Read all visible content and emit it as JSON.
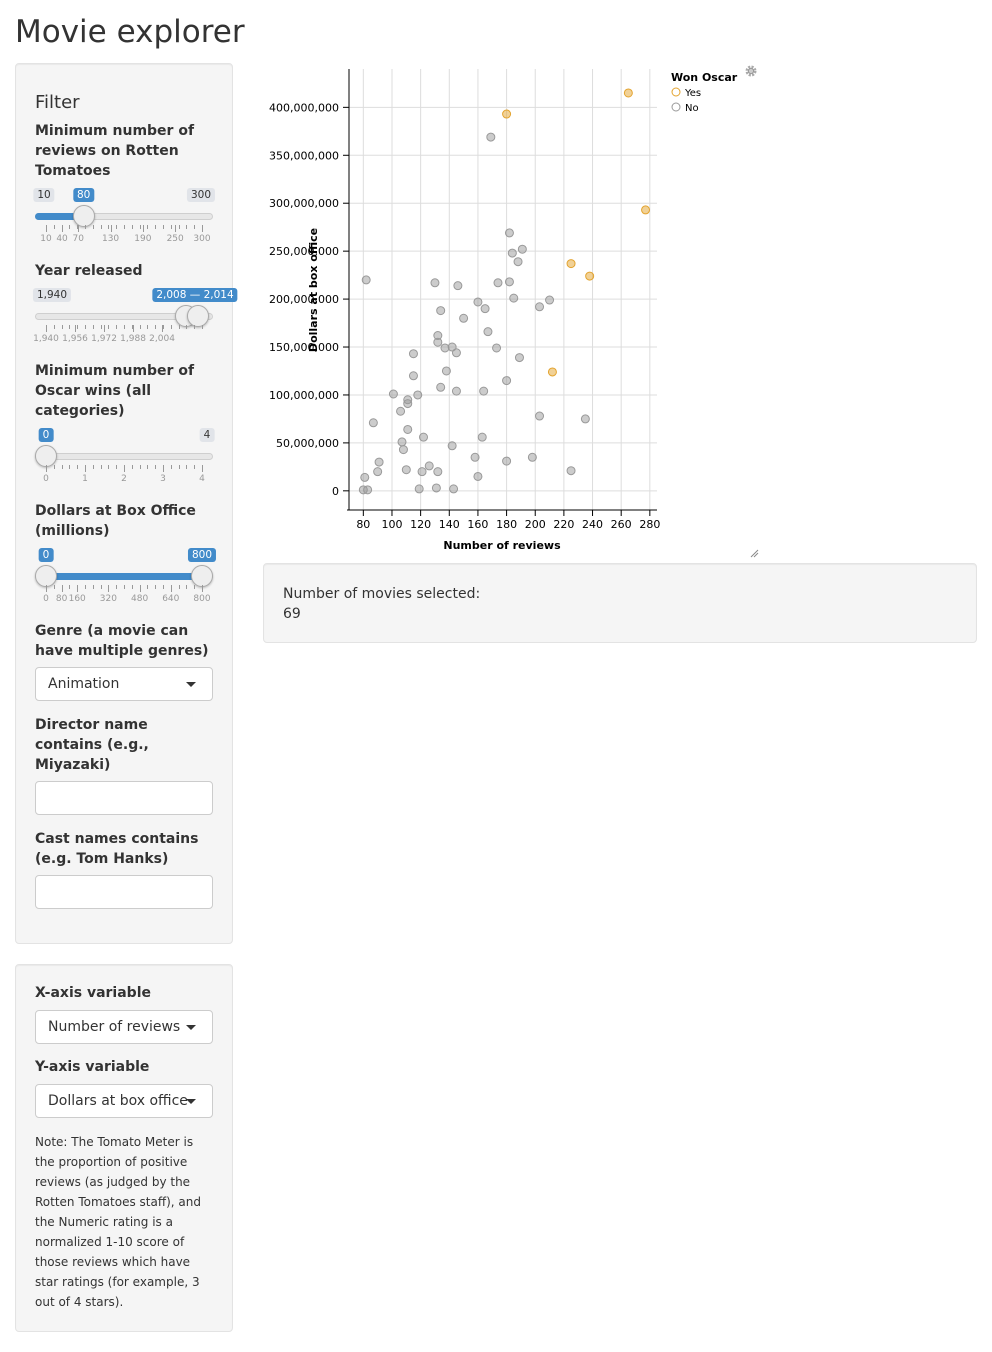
{
  "app": {
    "title": "Movie explorer"
  },
  "filter": {
    "heading": "Filter",
    "reviews": {
      "label": "Minimum number of reviews on Rotten Tomatoes",
      "min": "10",
      "max": "300",
      "value": "80",
      "fraction": 0.2414,
      "ticks": [
        "10",
        "40",
        "70",
        "130",
        "190",
        "250",
        "300"
      ]
    },
    "year": {
      "label": "Year released",
      "min": "1,940",
      "value": "2,008 — 2,014",
      "from_fraction": 0.8947,
      "to_fraction": 0.9737,
      "ticks": [
        "1,940",
        "1,956",
        "1,972",
        "1,988",
        "2,004"
      ]
    },
    "oscars": {
      "label": "Minimum number of Oscar wins (all categories)",
      "min": "0",
      "max": "4",
      "value": "0",
      "fraction": 0,
      "ticks": [
        "0",
        "1",
        "2",
        "3",
        "4"
      ]
    },
    "boxoffice": {
      "label": "Dollars at Box Office (millions)",
      "from": "0",
      "to": "800",
      "from_fraction": 0,
      "to_fraction": 1,
      "ticks": [
        "0",
        "80",
        "160",
        "320",
        "480",
        "640",
        "800"
      ]
    },
    "genre": {
      "label": "Genre (a movie can have multiple genres)",
      "value": "Animation"
    },
    "director": {
      "label": "Director name contains (e.g., Miyazaki)",
      "value": ""
    },
    "cast": {
      "label": "Cast names contains (e.g. Tom Hanks)",
      "value": ""
    }
  },
  "axes_panel": {
    "x": {
      "label": "X-axis variable",
      "value": "Number of reviews"
    },
    "y": {
      "label": "Y-axis variable",
      "value": "Dollars at box office"
    },
    "note": "Note: The Tomato Meter is the proportion of positive reviews (as judged by the Rotten Tomatoes staff), and the Numeric rating is a normalized 1-10 score of those reviews which have star ratings (for example, 3 out of 4 stars)."
  },
  "result": {
    "label": "Number of movies selected:",
    "count": "69"
  },
  "colors": {
    "yes": "#e3a32e",
    "no": "#999999",
    "accent": "#428bca"
  },
  "chart_data": {
    "type": "scatter",
    "xlabel": "Number of reviews",
    "ylabel": "Dollars at box office",
    "xlim": [
      70,
      285
    ],
    "ylim": [
      -20000000,
      440000000
    ],
    "xticks": [
      80,
      100,
      120,
      140,
      160,
      180,
      200,
      220,
      240,
      260,
      280
    ],
    "xtick_labels": [
      "80",
      "100",
      "120",
      "140",
      "160",
      "180",
      "200",
      "220",
      "240",
      "260",
      "280"
    ],
    "yticks": [
      0,
      50000000,
      100000000,
      150000000,
      200000000,
      250000000,
      300000000,
      350000000,
      400000000
    ],
    "ytick_labels": [
      "0",
      "50,000,000",
      "100,000,000",
      "150,000,000",
      "200,000,000",
      "250,000,000",
      "300,000,000",
      "350,000,000",
      "400,000,000"
    ],
    "grid": true,
    "legend": {
      "title": "Won Oscar",
      "position": "top-right",
      "entries": [
        "Yes",
        "No"
      ]
    },
    "series": [
      {
        "name": "Yes",
        "points": [
          [
            180,
            393000000
          ],
          [
            265,
            415000000
          ],
          [
            277,
            293000000
          ],
          [
            225,
            237000000
          ],
          [
            238,
            224000000
          ],
          [
            212,
            124000000
          ]
        ]
      },
      {
        "name": "No",
        "points": [
          [
            169,
            369000000
          ],
          [
            182,
            269000000
          ],
          [
            191,
            252000000
          ],
          [
            184,
            248000000
          ],
          [
            188,
            239000000
          ],
          [
            174,
            217000000
          ],
          [
            182,
            218000000
          ],
          [
            185,
            201000000
          ],
          [
            160,
            197000000
          ],
          [
            210,
            199000000
          ],
          [
            203,
            192000000
          ],
          [
            165,
            190000000
          ],
          [
            130,
            217000000
          ],
          [
            146,
            214000000
          ],
          [
            82,
            220000000
          ],
          [
            134,
            188000000
          ],
          [
            150,
            180000000
          ],
          [
            167,
            166000000
          ],
          [
            132,
            162000000
          ],
          [
            132,
            155000000
          ],
          [
            173,
            149000000
          ],
          [
            137,
            149000000
          ],
          [
            142,
            150000000
          ],
          [
            145,
            144000000
          ],
          [
            115,
            143000000
          ],
          [
            189,
            139000000
          ],
          [
            138,
            125000000
          ],
          [
            115,
            120000000
          ],
          [
            180,
            115000000
          ],
          [
            134,
            108000000
          ],
          [
            145,
            104000000
          ],
          [
            164,
            104000000
          ],
          [
            101,
            101000000
          ],
          [
            118,
            100000000
          ],
          [
            111,
            95000000
          ],
          [
            111,
            91000000
          ],
          [
            106,
            83000000
          ],
          [
            87,
            71000000
          ],
          [
            203,
            78000000
          ],
          [
            235,
            75000000
          ],
          [
            111,
            64000000
          ],
          [
            122,
            56000000
          ],
          [
            163,
            56000000
          ],
          [
            107,
            51000000
          ],
          [
            142,
            47000000
          ],
          [
            108,
            43000000
          ],
          [
            158,
            35000000
          ],
          [
            198,
            35000000
          ],
          [
            91,
            30000000
          ],
          [
            180,
            31000000
          ],
          [
            126,
            26000000
          ],
          [
            110,
            22000000
          ],
          [
            121,
            20000000
          ],
          [
            132,
            20000000
          ],
          [
            90,
            20000000
          ],
          [
            225,
            21000000
          ],
          [
            81,
            14000000
          ],
          [
            160,
            15000000
          ],
          [
            131,
            3000000
          ],
          [
            119,
            2000000
          ],
          [
            143,
            2000000
          ],
          [
            80,
            1000000
          ],
          [
            83,
            1000000
          ]
        ]
      }
    ]
  }
}
